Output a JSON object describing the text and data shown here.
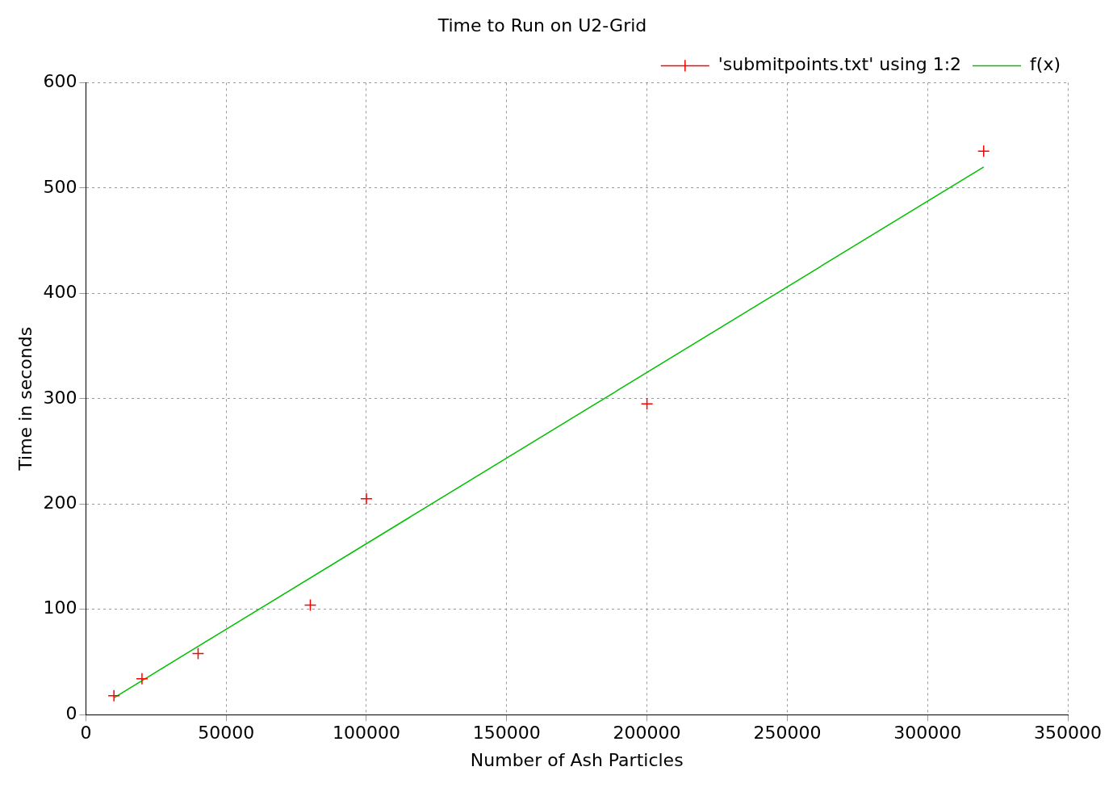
{
  "chart_data": {
    "type": "scatter",
    "title": "Time to Run on U2-Grid",
    "xlabel": "Number of Ash Particles",
    "ylabel": "Time in seconds",
    "xlim": [
      0,
      350000
    ],
    "xticks": [
      0,
      50000,
      100000,
      150000,
      200000,
      250000,
      300000,
      350000
    ],
    "ylim": [
      0,
      600
    ],
    "yticks": [
      0,
      100,
      200,
      300,
      400,
      500,
      600
    ],
    "grid": true,
    "legend": "top right",
    "series": [
      {
        "name": "'submitpoints.txt' using 1:2",
        "marker": "cross",
        "color": "#ff0000",
        "x": [
          10000,
          20000,
          40000,
          80000,
          100000,
          200000,
          320000
        ],
        "values": [
          18,
          34,
          58,
          104,
          205,
          295,
          535
        ]
      },
      {
        "name": "f(x)",
        "type": "line",
        "marker": "none",
        "color": "#00c000",
        "x": [
          10000,
          320000
        ],
        "values": [
          16,
          520
        ]
      }
    ]
  }
}
